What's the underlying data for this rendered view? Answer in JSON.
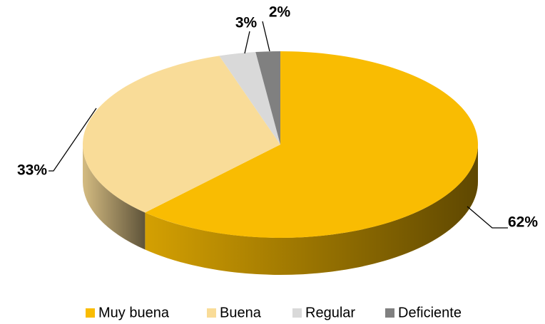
{
  "chart_data": {
    "type": "pie",
    "categories": [
      "Muy buena",
      "Buena",
      "Regular",
      "Deficiente"
    ],
    "values": [
      62,
      33,
      3,
      2
    ],
    "value_labels": [
      "62%",
      "33%",
      "3%",
      "2%"
    ],
    "colors": [
      "#F9BC02",
      "#F9DC98",
      "#D9D9D9",
      "#808080"
    ],
    "legend": "bottom"
  }
}
